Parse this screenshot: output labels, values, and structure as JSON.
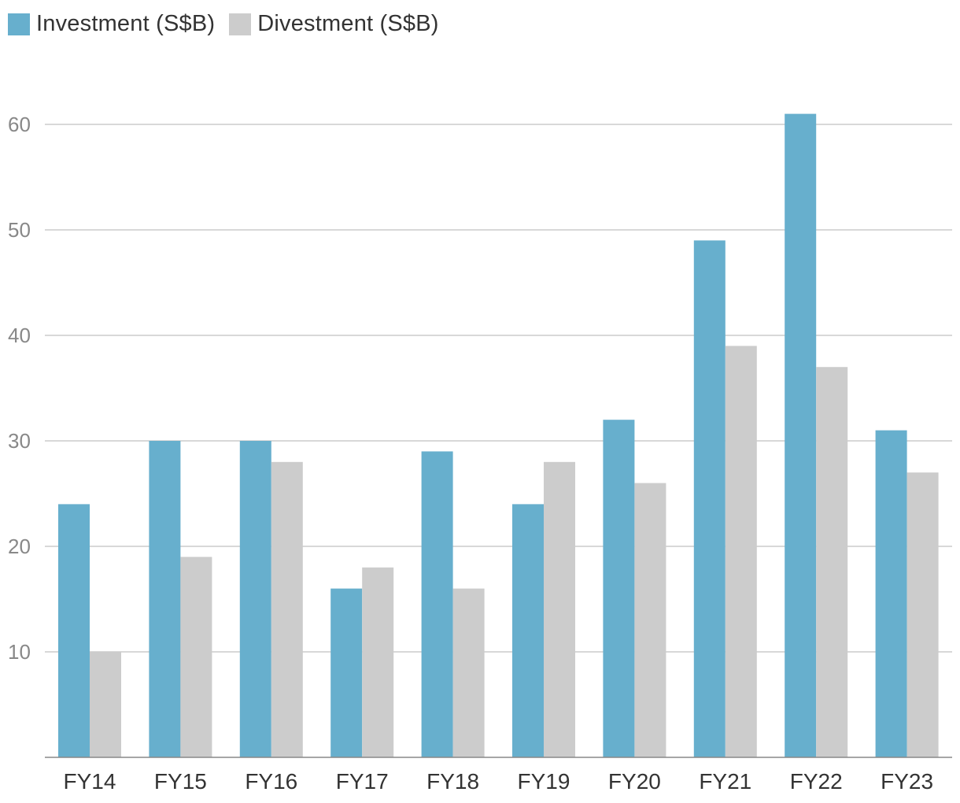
{
  "chart_data": {
    "type": "bar",
    "title": "",
    "xlabel": "",
    "ylabel": "",
    "categories": [
      "FY14",
      "FY15",
      "FY16",
      "FY17",
      "FY18",
      "FY19",
      "FY20",
      "FY21",
      "FY22",
      "FY23"
    ],
    "series": [
      {
        "name": "Investment (S$B)",
        "color": "#67afcd",
        "values": [
          24,
          30,
          30,
          16,
          29,
          24,
          32,
          49,
          61,
          31
        ]
      },
      {
        "name": "Divestment (S$B)",
        "color": "#cccccc",
        "values": [
          10,
          19,
          28,
          18,
          16,
          28,
          26,
          39,
          37,
          27
        ]
      }
    ],
    "ylim": [
      0,
      60
    ],
    "yticks": [
      10,
      20,
      30,
      40,
      50,
      60
    ],
    "grid": true,
    "legend_position": "top-left"
  }
}
